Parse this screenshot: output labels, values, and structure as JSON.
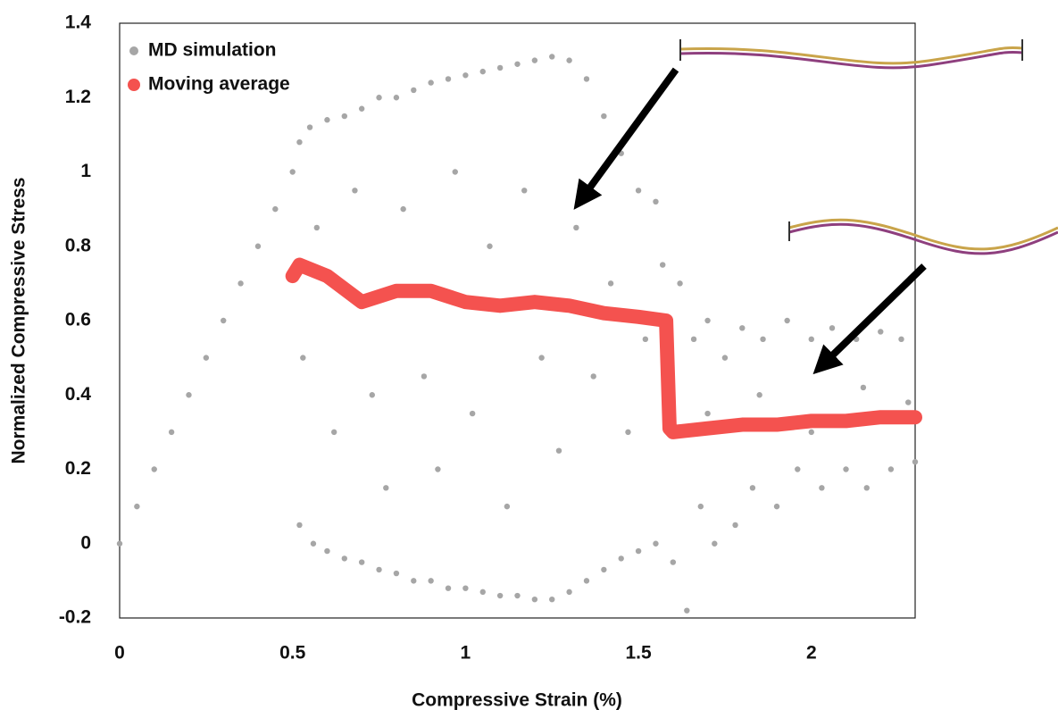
{
  "chart_data": {
    "type": "scatter",
    "xlabel": "Compressive Strain (%)",
    "ylabel": "Normalized Compressive Stress",
    "xlim": [
      0,
      2.3
    ],
    "ylim": [
      -0.2,
      1.4
    ],
    "xticks": [
      0,
      0.5,
      1,
      1.5,
      2
    ],
    "yticks": [
      -0.2,
      0,
      0.2,
      0.4,
      0.6,
      0.8,
      1,
      1.2,
      1.4
    ],
    "legend": "upper left",
    "series": [
      {
        "name": "MD simulation",
        "color": "#a6a6a6",
        "x": [
          0,
          0.05,
          0.1,
          0.15,
          0.2,
          0.25,
          0.3,
          0.35,
          0.4,
          0.45,
          0.5,
          0.52,
          0.55,
          0.6,
          0.65,
          0.7,
          0.75,
          0.8,
          0.85,
          0.9,
          0.95,
          1,
          1.05,
          1.1,
          1.15,
          1.2,
          1.25,
          1.3,
          1.35,
          1.4,
          1.45,
          1.5,
          1.55,
          0.53,
          0.57,
          0.62,
          0.68,
          0.73,
          0.77,
          0.82,
          0.88,
          0.92,
          0.97,
          1.02,
          1.07,
          1.12,
          1.17,
          1.22,
          1.27,
          1.32,
          1.37,
          1.42,
          1.47,
          1.52,
          1.57,
          0.52,
          0.56,
          0.6,
          0.65,
          0.7,
          0.75,
          0.8,
          0.85,
          0.9,
          0.95,
          1,
          1.05,
          1.1,
          1.15,
          1.2,
          1.25,
          1.3,
          1.35,
          1.4,
          1.45,
          1.5,
          1.55,
          1.6,
          1.62,
          1.64,
          1.66,
          1.68,
          1.7,
          1.72,
          1.75,
          1.78,
          1.8,
          1.83,
          1.86,
          1.9,
          1.93,
          1.96,
          2,
          2.03,
          2.06,
          2.1,
          2.13,
          2.16,
          2.2,
          2.23,
          2.26,
          2.3,
          1.7,
          1.85,
          2,
          2.15,
          2.28
        ],
        "y": [
          0,
          0.1,
          0.2,
          0.3,
          0.4,
          0.5,
          0.6,
          0.7,
          0.8,
          0.9,
          1,
          1.08,
          1.12,
          1.14,
          1.15,
          1.17,
          1.2,
          1.2,
          1.22,
          1.24,
          1.25,
          1.26,
          1.27,
          1.28,
          1.29,
          1.3,
          1.31,
          1.3,
          1.25,
          1.15,
          1.05,
          0.95,
          0.92,
          0.5,
          0.85,
          0.3,
          0.95,
          0.4,
          0.15,
          0.9,
          0.45,
          0.2,
          1,
          0.35,
          0.8,
          0.1,
          0.95,
          0.5,
          0.25,
          0.85,
          0.45,
          0.7,
          0.3,
          0.55,
          0.75,
          0.05,
          0,
          -0.02,
          -0.04,
          -0.05,
          -0.07,
          -0.08,
          -0.1,
          -0.1,
          -0.12,
          -0.12,
          -0.13,
          -0.14,
          -0.14,
          -0.15,
          -0.15,
          -0.13,
          -0.1,
          -0.07,
          -0.04,
          -0.02,
          0,
          -0.05,
          0.7,
          -0.18,
          0.55,
          0.1,
          0.6,
          0,
          0.5,
          0.05,
          0.58,
          0.15,
          0.55,
          0.1,
          0.6,
          0.2,
          0.55,
          0.15,
          0.58,
          0.2,
          0.55,
          0.15,
          0.57,
          0.2,
          0.55,
          0.22,
          0.35,
          0.4,
          0.3,
          0.42,
          0.38
        ]
      },
      {
        "name": "Moving average",
        "color": "#f4524f",
        "x": [
          0.5,
          0.52,
          0.6,
          0.7,
          0.8,
          0.9,
          1,
          1.1,
          1.2,
          1.3,
          1.4,
          1.5,
          1.58,
          1.59,
          1.6,
          1.7,
          1.8,
          1.9,
          2,
          2.1,
          2.2,
          2.3
        ],
        "y": [
          0.72,
          0.75,
          0.72,
          0.65,
          0.68,
          0.68,
          0.65,
          0.64,
          0.65,
          0.64,
          0.62,
          0.61,
          0.6,
          0.31,
          0.3,
          0.31,
          0.32,
          0.32,
          0.33,
          0.33,
          0.34,
          0.34
        ]
      }
    ]
  }
}
